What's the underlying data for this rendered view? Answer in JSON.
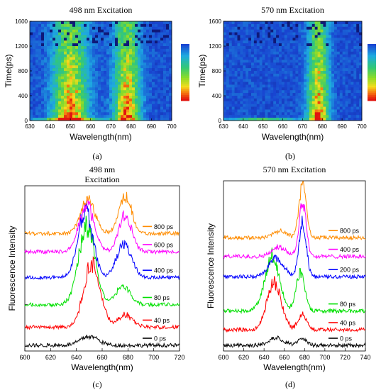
{
  "panels": {
    "a": {
      "caption": "(a)"
    },
    "b": {
      "caption": "(b)"
    },
    "c": {
      "caption": "(c)"
    },
    "d": {
      "caption": "(d)"
    }
  },
  "chart_data": [
    {
      "id": "a",
      "type": "heatmap",
      "title": "498 nm Excitation",
      "xlabel": "Wavelength(nm)",
      "ylabel": "Time(ps)",
      "xlim": [
        630,
        700
      ],
      "ylim": [
        0,
        1600
      ],
      "xticks": [
        630,
        640,
        650,
        660,
        670,
        680,
        690,
        700
      ],
      "yticks": [
        0,
        400,
        800,
        1200,
        1600
      ],
      "peaks": [
        {
          "x": 650,
          "w": 8
        },
        {
          "x": 678,
          "w": 6
        }
      ],
      "colorbar": [
        "#2050d0",
        "#20c8e8",
        "#30d060",
        "#f0e020",
        "#f06010",
        "#e01010"
      ]
    },
    {
      "id": "b",
      "type": "heatmap",
      "title": "570 nm Excitation",
      "xlabel": "Wavelength(nm)",
      "ylabel": "Time(ps)",
      "xlim": [
        630,
        700
      ],
      "ylim": [
        0,
        1600
      ],
      "xticks": [
        630,
        640,
        650,
        660,
        670,
        680,
        690,
        700
      ],
      "yticks": [
        0,
        400,
        800,
        1200,
        1600
      ],
      "peaks": [
        {
          "x": 678,
          "w": 5
        }
      ],
      "colorbar": [
        "#2050d0",
        "#20c8e8",
        "#30d060",
        "#f0e020",
        "#f06010",
        "#e01010"
      ]
    },
    {
      "id": "c",
      "type": "line",
      "title": "498 nm\nExcitation",
      "xlabel": "Wavelength(nm)",
      "ylabel": "Fluorescence Intensity",
      "xlim": [
        600,
        720
      ],
      "xticks": [
        600,
        620,
        640,
        660,
        680,
        700,
        720
      ],
      "series": [
        {
          "name": "0 ps",
          "color": "#000000",
          "offset": 0.0,
          "peaks": [
            [
              650,
              0.06,
              10
            ]
          ]
        },
        {
          "name": "40 ps",
          "color": "#ff0000",
          "offset": 0.12,
          "peaks": [
            [
              652,
              0.42,
              9
            ],
            [
              678,
              0.08,
              8
            ]
          ]
        },
        {
          "name": "80 ps",
          "color": "#00e000",
          "offset": 0.27,
          "peaks": [
            [
              648,
              0.52,
              9
            ],
            [
              676,
              0.12,
              8
            ]
          ]
        },
        {
          "name": "400 ps",
          "color": "#0000ff",
          "offset": 0.45,
          "peaks": [
            [
              647,
              0.45,
              8
            ],
            [
              677,
              0.22,
              8
            ]
          ]
        },
        {
          "name": "600 ps",
          "color": "#ff00ff",
          "offset": 0.62,
          "peaks": [
            [
              648,
              0.32,
              8
            ],
            [
              678,
              0.24,
              7
            ]
          ]
        },
        {
          "name": "800 ps",
          "color": "#ff8c00",
          "offset": 0.74,
          "peaks": [
            [
              649,
              0.22,
              8
            ],
            [
              678,
              0.25,
              7
            ]
          ]
        }
      ]
    },
    {
      "id": "d",
      "type": "line",
      "title": "570 nm Excitation",
      "xlabel": "Wavelength(nm)",
      "ylabel": "Fluorescence Intensity",
      "xlim": [
        600,
        740
      ],
      "xticks": [
        600,
        620,
        640,
        660,
        680,
        700,
        720,
        740
      ],
      "series": [
        {
          "name": "0 ps",
          "color": "#000000",
          "offset": 0.0,
          "peaks": [
            [
              652,
              0.05,
              10
            ],
            [
              678,
              0.04,
              6
            ]
          ]
        },
        {
          "name": "40 ps",
          "color": "#ff0000",
          "offset": 0.1,
          "peaks": [
            [
              650,
              0.3,
              10
            ],
            [
              678,
              0.1,
              6
            ]
          ]
        },
        {
          "name": "80 ps",
          "color": "#00e000",
          "offset": 0.22,
          "peaks": [
            [
              648,
              0.35,
              10
            ],
            [
              676,
              0.25,
              6
            ]
          ]
        },
        {
          "name": "200 ps",
          "color": "#0000ff",
          "offset": 0.44,
          "peaks": [
            [
              652,
              0.12,
              10
            ],
            [
              678,
              0.35,
              5
            ]
          ]
        },
        {
          "name": "400 ps",
          "color": "#ff00ff",
          "offset": 0.57,
          "peaks": [
            [
              655,
              0.06,
              10
            ],
            [
              678,
              0.35,
              5
            ]
          ]
        },
        {
          "name": "800 ps",
          "color": "#ff8c00",
          "offset": 0.69,
          "peaks": [
            [
              655,
              0.04,
              10
            ],
            [
              678,
              0.35,
              5
            ]
          ]
        }
      ]
    }
  ]
}
